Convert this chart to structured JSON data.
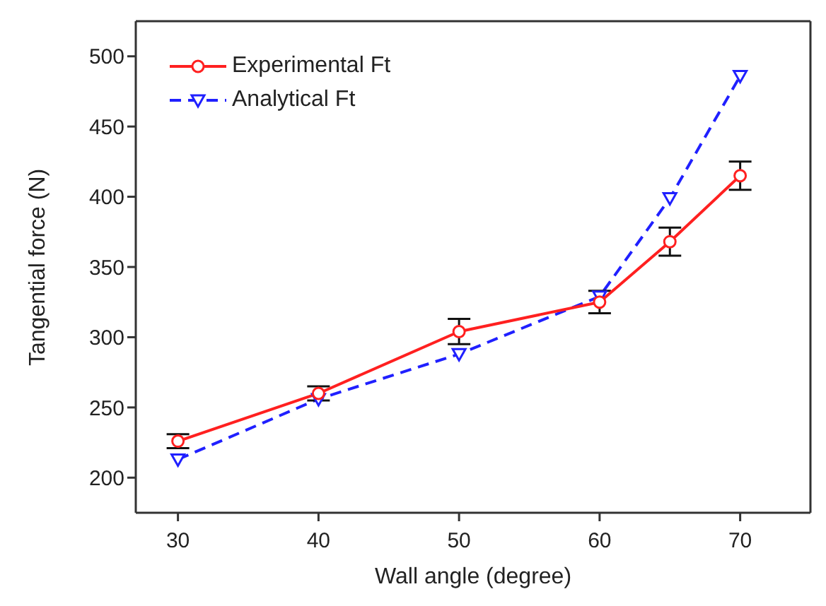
{
  "chart_data": {
    "type": "line",
    "xlabel": "Wall angle (degree)",
    "ylabel": "Tangential force (N)",
    "x": [
      30,
      40,
      50,
      60,
      65,
      70
    ],
    "xlim": [
      27,
      75
    ],
    "xticks": [
      30,
      40,
      50,
      60,
      70
    ],
    "ylim": [
      175,
      525
    ],
    "yticks": [
      200,
      250,
      300,
      350,
      400,
      450,
      500
    ],
    "legend": "top left",
    "grid": false,
    "series": [
      {
        "name": "Experimental Ft",
        "color": "#ff2020",
        "values": [
          226,
          260,
          304,
          325,
          368,
          415
        ],
        "errors": [
          5,
          5,
          9,
          8,
          10,
          10
        ],
        "marker": "circle",
        "line_style": "solid"
      },
      {
        "name": "Analytical Ft",
        "color": "#2020ff",
        "values": [
          213,
          256,
          288,
          329,
          399,
          486
        ],
        "marker": "triangle",
        "line_style": "dashed"
      }
    ]
  }
}
